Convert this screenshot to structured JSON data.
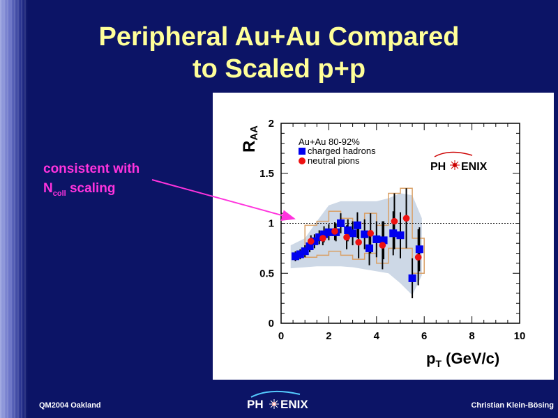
{
  "slide": {
    "title_line1": "Peripheral Au+Au Compared",
    "title_line2": "to Scaled p+p",
    "annotation": {
      "line1": "consistent with",
      "line2_prefix": "N",
      "line2_sub": "coll",
      "line2_suffix": " scaling"
    },
    "footer_left": "QM2004 Oakland",
    "footer_right": "Christian Klein-Bösing",
    "logo_text_left": "PH",
    "logo_text_right": "ENIX"
  },
  "chart_data": {
    "type": "scatter",
    "ylabel": "R",
    "ylabel_sub": "AA",
    "xlabel": "p",
    "xlabel_sub": "T",
    "xlabel_unit": " (GeV/c)",
    "xlim": [
      0,
      10
    ],
    "ylim": [
      0,
      2
    ],
    "xticks": [
      "0",
      "2",
      "4",
      "6",
      "8",
      "10"
    ],
    "yticks": [
      "0",
      "0.5",
      "1",
      "1.5",
      "2"
    ],
    "reference_line": 1,
    "legend_title": "Au+Au 80-92%",
    "legend_placement": "top-left",
    "logo": {
      "left": "PH",
      "right": "ENIX"
    },
    "series": [
      {
        "name": "charged hadrons",
        "marker": "square",
        "color": "#0000ee",
        "points": [
          {
            "x": 0.6,
            "y": 0.67,
            "err": 0.05
          },
          {
            "x": 0.8,
            "y": 0.69,
            "err": 0.05
          },
          {
            "x": 1.0,
            "y": 0.72,
            "err": 0.06
          },
          {
            "x": 1.2,
            "y": 0.77,
            "err": 0.06
          },
          {
            "x": 1.4,
            "y": 0.82,
            "err": 0.07
          },
          {
            "x": 1.6,
            "y": 0.86,
            "err": 0.07
          },
          {
            "x": 1.8,
            "y": 0.89,
            "err": 0.08
          },
          {
            "x": 2.0,
            "y": 0.91,
            "err": 0.08
          },
          {
            "x": 2.3,
            "y": 0.91,
            "err": 0.09
          },
          {
            "x": 2.5,
            "y": 1.0,
            "err": 0.1
          },
          {
            "x": 2.8,
            "y": 0.93,
            "err": 0.11
          },
          {
            "x": 3.0,
            "y": 0.9,
            "err": 0.12
          },
          {
            "x": 3.2,
            "y": 0.98,
            "err": 0.13
          },
          {
            "x": 3.5,
            "y": 0.89,
            "err": 0.15
          },
          {
            "x": 3.7,
            "y": 0.75,
            "err": 0.17
          },
          {
            "x": 4.0,
            "y": 0.84,
            "err": 0.18
          },
          {
            "x": 4.3,
            "y": 0.83,
            "err": 0.19
          },
          {
            "x": 4.7,
            "y": 0.9,
            "err": 0.22
          },
          {
            "x": 5.0,
            "y": 0.88,
            "err": 0.23
          },
          {
            "x": 5.5,
            "y": 0.45,
            "err": 0.2
          },
          {
            "x": 5.8,
            "y": 0.74,
            "err": 0.22
          }
        ],
        "syst_band": [
          {
            "x": 0.4,
            "lo": 0.55,
            "hi": 0.78
          },
          {
            "x": 1.0,
            "lo": 0.56,
            "hi": 0.85
          },
          {
            "x": 1.5,
            "lo": 0.57,
            "hi": 1.02
          },
          {
            "x": 2.0,
            "lo": 0.57,
            "hi": 1.18
          },
          {
            "x": 2.5,
            "lo": 0.57,
            "hi": 1.22
          },
          {
            "x": 3.0,
            "lo": 0.56,
            "hi": 1.22
          },
          {
            "x": 3.5,
            "lo": 0.54,
            "hi": 1.22
          },
          {
            "x": 4.0,
            "lo": 0.52,
            "hi": 1.22
          },
          {
            "x": 4.5,
            "lo": 0.5,
            "hi": 1.25
          },
          {
            "x": 5.0,
            "lo": 0.4,
            "hi": 1.3
          },
          {
            "x": 5.5,
            "lo": 0.28,
            "hi": 1.28
          },
          {
            "x": 5.9,
            "lo": 0.48,
            "hi": 1.05
          }
        ]
      },
      {
        "name": "neutral pions",
        "marker": "circle",
        "color": "#ee1111",
        "points": [
          {
            "x": 1.25,
            "y": 0.82,
            "err": 0.06
          },
          {
            "x": 1.75,
            "y": 0.85,
            "err": 0.07
          },
          {
            "x": 2.25,
            "y": 0.92,
            "err": 0.09
          },
          {
            "x": 2.75,
            "y": 0.86,
            "err": 0.12
          },
          {
            "x": 3.25,
            "y": 0.81,
            "err": 0.16
          },
          {
            "x": 3.75,
            "y": 0.9,
            "err": 0.2
          },
          {
            "x": 4.25,
            "y": 0.78,
            "err": 0.24
          },
          {
            "x": 4.75,
            "y": 1.02,
            "err": 0.28
          },
          {
            "x": 5.25,
            "y": 1.05,
            "err": 0.3
          },
          {
            "x": 5.75,
            "y": 0.66,
            "err": 0.28
          }
        ],
        "syst_boxes": [
          {
            "x0": 1.0,
            "x1": 1.5,
            "lo": 0.66,
            "hi": 0.98
          },
          {
            "x0": 1.5,
            "x1": 2.0,
            "lo": 0.68,
            "hi": 1.02
          },
          {
            "x0": 2.0,
            "x1": 2.5,
            "lo": 0.72,
            "hi": 1.12
          },
          {
            "x0": 2.5,
            "x1": 3.0,
            "lo": 0.68,
            "hi": 1.05
          },
          {
            "x0": 3.0,
            "x1": 3.5,
            "lo": 0.64,
            "hi": 1.0
          },
          {
            "x0": 3.5,
            "x1": 4.0,
            "lo": 0.7,
            "hi": 1.1
          },
          {
            "x0": 4.0,
            "x1": 4.5,
            "lo": 0.6,
            "hi": 0.98
          },
          {
            "x0": 4.5,
            "x1": 5.0,
            "lo": 0.75,
            "hi": 1.3
          },
          {
            "x0": 5.0,
            "x1": 5.5,
            "lo": 0.75,
            "hi": 1.35
          },
          {
            "x0": 5.5,
            "x1": 6.0,
            "lo": 0.5,
            "hi": 0.85
          }
        ]
      }
    ]
  }
}
